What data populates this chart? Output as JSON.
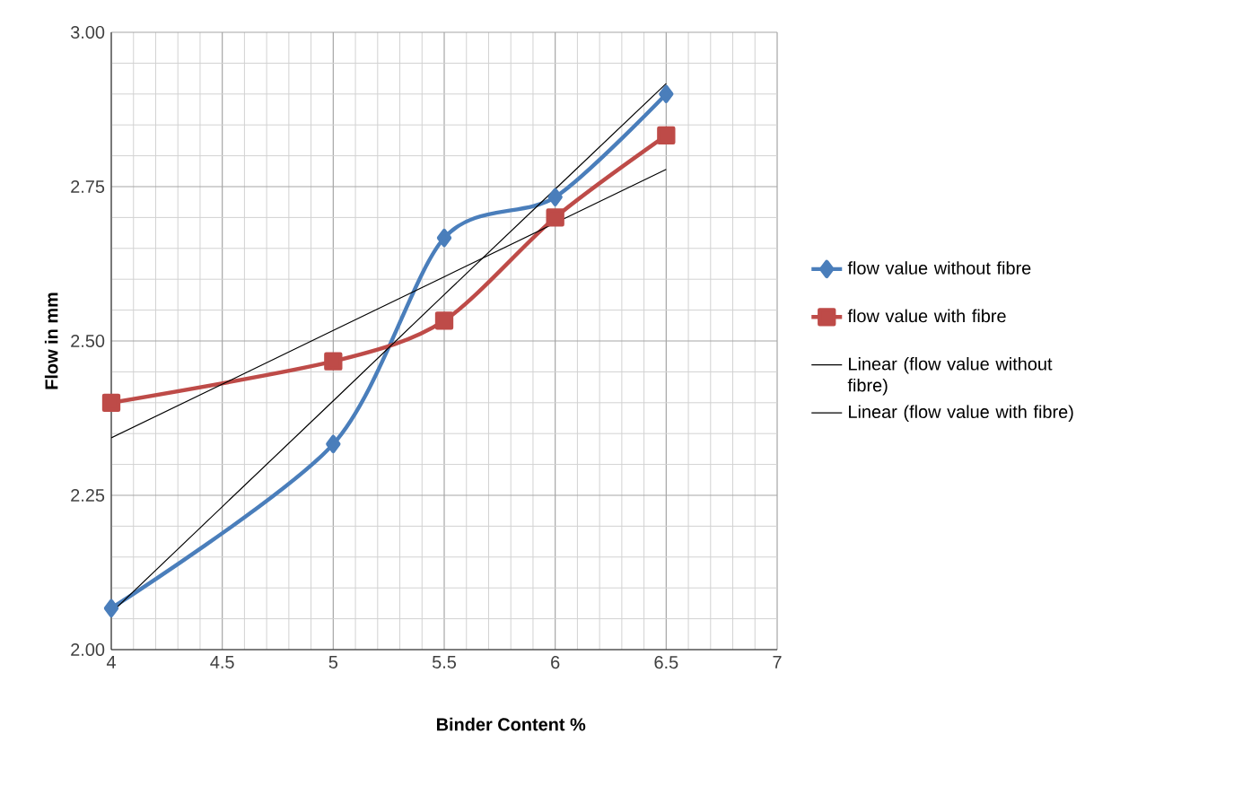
{
  "chart_data": {
    "type": "line",
    "xlabel": "Binder Content %",
    "ylabel": "Flow in mm",
    "x": [
      4,
      5,
      5.5,
      6,
      6.5
    ],
    "series": [
      {
        "name": "flow value without fibre",
        "color": "#4a7ebb",
        "marker": "diamond",
        "values": [
          2.067,
          2.333,
          2.667,
          2.733,
          2.9
        ]
      },
      {
        "name": "flow value with fibre",
        "color": "#be4b48",
        "marker": "square",
        "values": [
          2.4,
          2.467,
          2.533,
          2.7,
          2.833
        ]
      },
      {
        "name": "Linear (flow value without fibre)",
        "color": "#000000",
        "marker": "none",
        "values": [
          2.06,
          2.403,
          2.575,
          2.746,
          2.917
        ]
      },
      {
        "name": "Linear (flow value with fibre)",
        "color": "#000000",
        "marker": "none",
        "values": [
          2.343,
          2.517,
          2.604,
          2.691,
          2.778
        ]
      }
    ],
    "xlim": [
      4,
      7
    ],
    "xticks": [
      4,
      4.5,
      5,
      5.5,
      6,
      6.5,
      7
    ],
    "ylim": [
      2,
      3
    ],
    "yticks": [
      {
        "value": 2,
        "label": "2.00"
      },
      {
        "value": 2.25,
        "label": "2.25"
      },
      {
        "value": 2.5,
        "label": "2.50"
      },
      {
        "value": 2.75,
        "label": "2.75"
      },
      {
        "value": 3,
        "label": "3.00"
      }
    ],
    "grid": true,
    "legend": "right"
  }
}
